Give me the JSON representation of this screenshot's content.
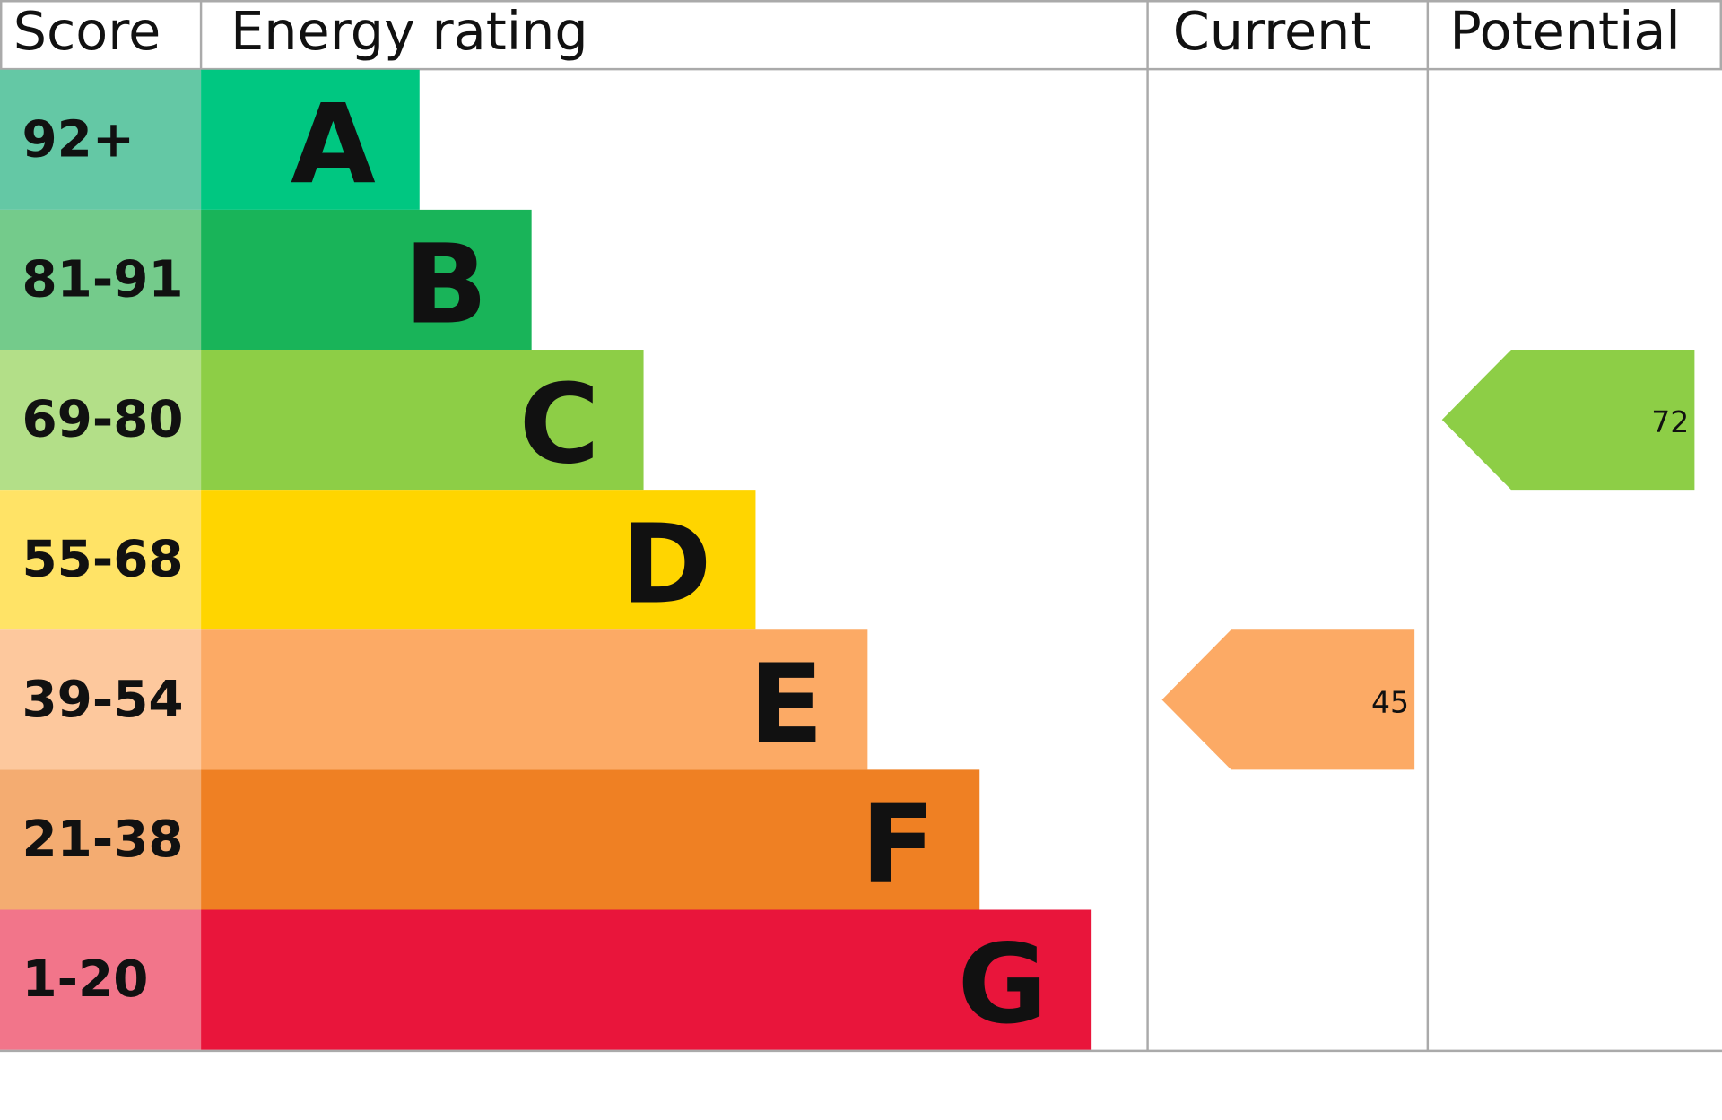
{
  "header": {
    "score": "Score",
    "rating": "Energy rating",
    "current": "Current",
    "potential": "Potential"
  },
  "bands": [
    {
      "range": "92+",
      "letter": "A",
      "color": "#00c781",
      "score_color": "#64c8a5"
    },
    {
      "range": "81-91",
      "letter": "B",
      "color": "#19b459",
      "score_color": "#74cb8b"
    },
    {
      "range": "69-80",
      "letter": "C",
      "color": "#8dce46",
      "score_color": "#b3df88"
    },
    {
      "range": "55-68",
      "letter": "D",
      "color": "#ffd500",
      "score_color": "#ffe366"
    },
    {
      "range": "39-54",
      "letter": "E",
      "color": "#fcaa65",
      "score_color": "#fdc89d"
    },
    {
      "range": "21-38",
      "letter": "F",
      "color": "#ef8023",
      "score_color": "#f4ac71"
    },
    {
      "range": "1-20",
      "letter": "G",
      "color": "#e9153b",
      "score_color": "#f2758a"
    }
  ],
  "current": 45,
  "potential": 72
}
